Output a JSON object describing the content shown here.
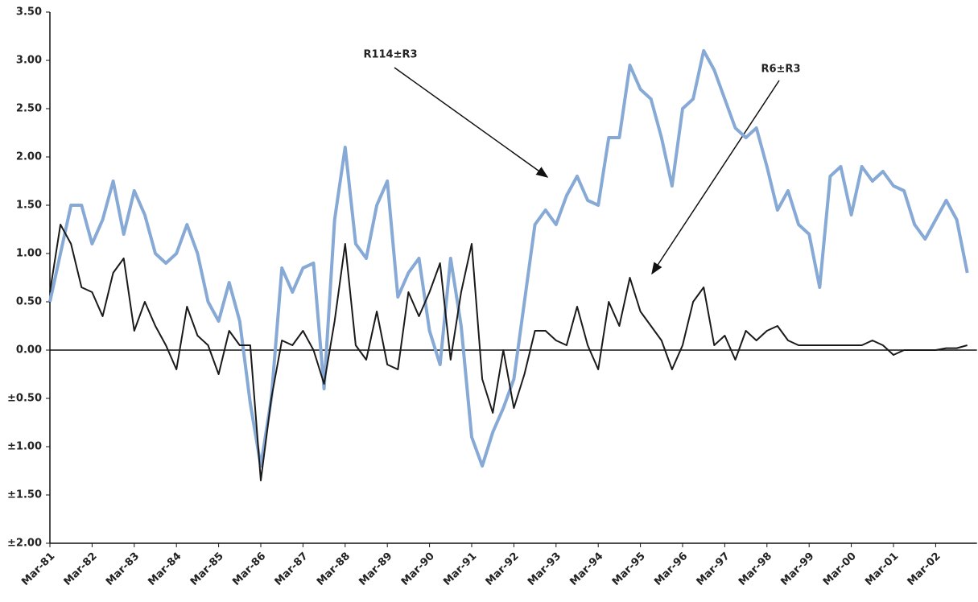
{
  "chart_data": {
    "type": "line",
    "annotations": [
      "R114±R3",
      "R6±R3"
    ],
    "categories": [
      "Mar-81",
      null,
      null,
      null,
      "Mar-82",
      null,
      null,
      null,
      "Mar-83",
      null,
      null,
      null,
      "Mar-84",
      null,
      null,
      null,
      "Mar-85",
      null,
      null,
      null,
      "Mar-86",
      null,
      null,
      null,
      "Mar-87",
      null,
      null,
      null,
      "Mar-88",
      null,
      null,
      null,
      "Mar-89",
      null,
      null,
      null,
      "Mar-90",
      null,
      null,
      null,
      "Mar-91",
      null,
      null,
      null,
      "Mar-92",
      null,
      null,
      null,
      "Mar-93",
      null,
      null,
      null,
      "Mar-94",
      null,
      null,
      null,
      "Mar-95",
      null,
      null,
      null,
      "Mar-96",
      null,
      null,
      null,
      "Mar-97",
      null,
      null,
      null,
      "Mar-98",
      null,
      null,
      null,
      "Mar-99",
      null,
      null,
      null,
      "Mar-00",
      null,
      null,
      null,
      "Mar-01",
      null,
      null,
      null,
      "Mar-02",
      null,
      null,
      null
    ],
    "series": [
      {
        "color": "#86a9d6",
        "values": [
          0.5,
          1.0,
          1.5,
          1.5,
          1.1,
          1.35,
          1.75,
          1.2,
          1.65,
          1.4,
          1.0,
          0.9,
          1.0,
          1.3,
          1.0,
          0.5,
          0.3,
          0.7,
          0.3,
          -0.55,
          -1.2,
          -0.5,
          0.85,
          0.6,
          0.85,
          0.9,
          -0.4,
          1.35,
          2.1,
          1.1,
          0.95,
          1.5,
          1.75,
          0.55,
          0.8,
          0.95,
          0.2,
          -0.15,
          0.95,
          0.25,
          -0.9,
          -1.2,
          -0.85,
          -0.6,
          -0.3,
          0.5,
          1.3,
          1.45,
          1.3,
          1.6,
          1.8,
          1.55,
          1.5,
          2.2,
          2.2,
          2.95,
          2.7,
          2.6,
          2.2,
          1.7,
          2.5,
          2.6,
          3.1,
          2.9,
          2.6,
          2.3,
          2.2,
          2.3,
          1.9,
          1.45,
          1.65,
          1.3,
          1.2,
          0.65,
          1.8,
          1.9,
          1.4,
          1.9,
          1.75,
          1.85,
          1.7,
          1.65,
          1.3,
          1.15,
          1.35,
          1.55,
          1.35,
          0.8
        ]
      },
      {
        "color": "#1a1a1a",
        "values": [
          0.6,
          1.3,
          1.1,
          0.65,
          0.6,
          0.35,
          0.8,
          0.95,
          0.2,
          0.5,
          0.25,
          0.05,
          -0.2,
          0.45,
          0.15,
          0.05,
          -0.25,
          0.2,
          0.05,
          0.05,
          -1.35,
          -0.5,
          0.1,
          0.05,
          0.2,
          0.0,
          -0.35,
          0.3,
          1.1,
          0.05,
          -0.1,
          0.4,
          -0.15,
          -0.2,
          0.6,
          0.35,
          0.6,
          0.9,
          -0.1,
          0.6,
          1.1,
          -0.3,
          -0.65,
          0,
          -0.6,
          -0.25,
          0.2,
          0.2,
          0.1,
          0.05,
          0.45,
          0.05,
          -0.2,
          0.5,
          0.25,
          0.75,
          0.4,
          0.25,
          0.1,
          -0.2,
          0.05,
          0.5,
          0.65,
          0.05,
          0.15,
          -0.1,
          0.2,
          0.1,
          0.2,
          0.25,
          0.1,
          0.05,
          0.05,
          0.05,
          0.05,
          0.05,
          0.05,
          0.05,
          0.1,
          0.05,
          -0.05,
          0.0,
          0.0,
          0.0,
          0.0,
          0.02,
          0.02,
          0.05
        ]
      }
    ],
    "ylim": [
      -2,
      3.5
    ],
    "yticks": [
      {
        "value": -2,
        "label": "±2.00"
      },
      {
        "value": -1.5,
        "label": "±1.50"
      },
      {
        "value": -1,
        "label": "±1.00"
      },
      {
        "value": -0.5,
        "label": "±0.50"
      },
      {
        "value": 0,
        "label": "0.00"
      },
      {
        "value": 0.5,
        "label": "0.50"
      },
      {
        "value": 1,
        "label": "1.00"
      },
      {
        "value": 1.5,
        "label": "1.50"
      },
      {
        "value": 2,
        "label": "2.00"
      },
      {
        "value": 2.5,
        "label": "2.50"
      },
      {
        "value": 3,
        "label": "3.00"
      },
      {
        "value": 3.5,
        "label": "3.50"
      }
    ]
  }
}
